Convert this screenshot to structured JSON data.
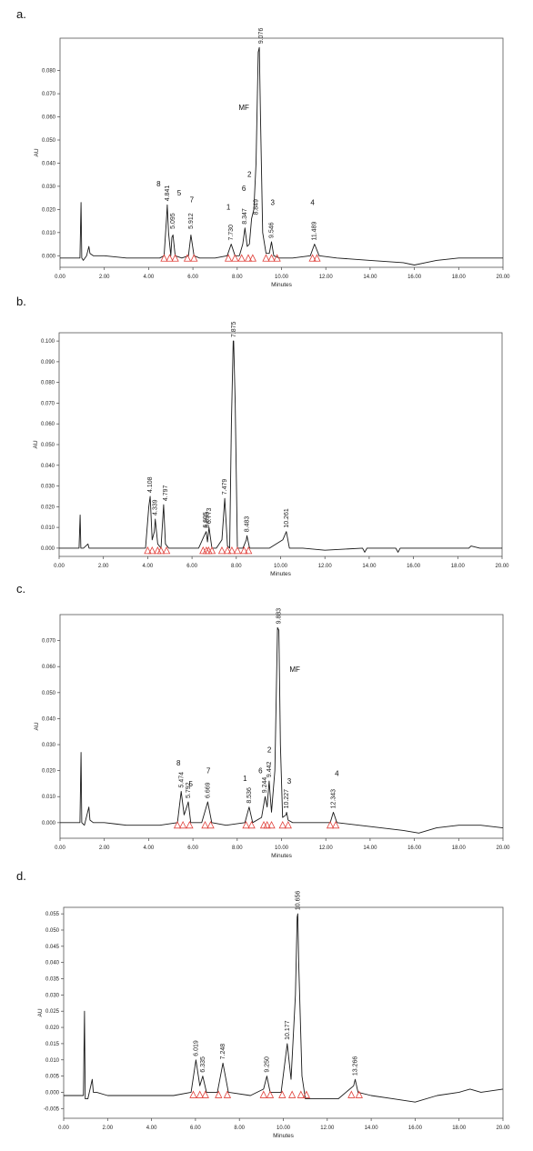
{
  "chart_data": [
    {
      "type": "line",
      "panel_label": "a.",
      "xlabel": "Minutes",
      "ylabel": "AU",
      "xlim": [
        0,
        20
      ],
      "ylim": [
        -0.005,
        0.094
      ],
      "xticks": [
        "0.00",
        "2.00",
        "4.00",
        "6.00",
        "8.00",
        "10.00",
        "12.00",
        "14.00",
        "16.00",
        "18.00",
        "20.00"
      ],
      "yticks": [
        {
          "v": 0.0,
          "t": "0.000"
        },
        {
          "v": 0.01,
          "t": "0.010"
        },
        {
          "v": 0.02,
          "t": "0.020"
        },
        {
          "v": 0.03,
          "t": "0.030"
        },
        {
          "v": 0.04,
          "t": "0.040"
        },
        {
          "v": 0.05,
          "t": "0.050"
        },
        {
          "v": 0.06,
          "t": "0.060"
        },
        {
          "v": 0.07,
          "t": "0.070"
        },
        {
          "v": 0.08,
          "t": "0.080"
        }
      ],
      "series": [
        {
          "x": [
            0,
            0.9,
            0.95,
            0.98,
            1.05,
            1.2,
            1.3,
            1.35,
            1.5,
            2.0,
            3.0,
            4.0,
            4.5,
            4.7,
            4.8,
            4.84,
            4.9,
            5.0,
            5.05,
            5.1,
            5.2,
            5.5,
            5.8,
            5.91,
            6.05,
            6.3,
            7.0,
            7.55,
            7.73,
            7.9,
            8.1,
            8.25,
            8.35,
            8.45,
            8.55,
            8.65,
            8.75,
            8.85,
            8.95,
            9.0,
            9.05,
            9.15,
            9.3,
            9.45,
            9.55,
            9.65,
            9.9,
            10.5,
            11.3,
            11.49,
            11.7,
            12.5,
            14.0,
            15.5,
            16.0,
            16.5,
            17.0,
            18.0,
            19.0,
            20.0
          ],
          "y": [
            -0.001,
            -0.001,
            0.023,
            -0.001,
            -0.002,
            0.0,
            0.004,
            0.001,
            0.0,
            0.0,
            -0.001,
            -0.001,
            -0.001,
            0.0,
            0.015,
            0.022,
            0.01,
            0.0,
            0.008,
            0.009,
            0.0,
            -0.001,
            0.0,
            0.009,
            0.0,
            -0.001,
            -0.001,
            0.0,
            0.005,
            0.0,
            0.0,
            0.005,
            0.012,
            0.004,
            0.005,
            0.016,
            0.02,
            0.04,
            0.088,
            0.09,
            0.06,
            0.01,
            0.001,
            0.001,
            0.006,
            0.0,
            -0.001,
            -0.001,
            0.0,
            0.005,
            0.0,
            -0.001,
            -0.002,
            -0.003,
            -0.004,
            -0.003,
            -0.002,
            -0.001,
            -0.001,
            -0.001
          ]
        }
      ],
      "peak_labels": [
        {
          "x": 4.841,
          "y": 0.022,
          "text": "4.841"
        },
        {
          "x": 5.095,
          "y": 0.01,
          "text": "5.095"
        },
        {
          "x": 5.912,
          "y": 0.01,
          "text": "5.912"
        },
        {
          "x": 7.73,
          "y": 0.005,
          "text": "7.730"
        },
        {
          "x": 8.347,
          "y": 0.012,
          "text": "8.347"
        },
        {
          "x": 8.849,
          "y": 0.016,
          "text": "8.849"
        },
        {
          "x": 9.076,
          "y": 0.09,
          "text": "9.076"
        },
        {
          "x": 9.546,
          "y": 0.006,
          "text": "9.546"
        },
        {
          "x": 11.489,
          "y": 0.005,
          "text": "11.489"
        }
      ],
      "annotations": [
        {
          "x": 4.45,
          "y": 0.03,
          "text": "8"
        },
        {
          "x": 5.38,
          "y": 0.026,
          "text": "5"
        },
        {
          "x": 5.95,
          "y": 0.023,
          "text": "7"
        },
        {
          "x": 7.6,
          "y": 0.02,
          "text": "1"
        },
        {
          "x": 8.3,
          "y": 0.028,
          "text": "6"
        },
        {
          "x": 8.55,
          "y": 0.034,
          "text": "2"
        },
        {
          "x": 9.6,
          "y": 0.022,
          "text": "3"
        },
        {
          "x": 11.4,
          "y": 0.022,
          "text": "4"
        },
        {
          "x": 8.3,
          "y": 0.063,
          "text": "MF"
        }
      ],
      "markers": [
        4.7,
        4.95,
        5.2,
        5.75,
        6.05,
        7.6,
        7.9,
        8.2,
        8.5,
        8.7,
        9.3,
        9.55,
        9.8,
        11.4,
        11.6
      ]
    },
    {
      "type": "line",
      "panel_label": "b.",
      "xlabel": "Minutes",
      "ylabel": "AU",
      "xlim": [
        0,
        20
      ],
      "ylim": [
        -0.004,
        0.104
      ],
      "xticks": [
        "0.00",
        "2.00",
        "4.00",
        "6.00",
        "8.00",
        "10.00",
        "12.00",
        "14.00",
        "16.00",
        "18.00",
        "20.00"
      ],
      "yticks": [
        {
          "v": 0.0,
          "t": "0.000"
        },
        {
          "v": 0.01,
          "t": "0.010"
        },
        {
          "v": 0.02,
          "t": "0.020"
        },
        {
          "v": 0.03,
          "t": "0.030"
        },
        {
          "v": 0.04,
          "t": "0.040"
        },
        {
          "v": 0.05,
          "t": "0.050"
        },
        {
          "v": 0.06,
          "t": "0.060"
        },
        {
          "v": 0.07,
          "t": "0.070"
        },
        {
          "v": 0.08,
          "t": "0.080"
        },
        {
          "v": 0.09,
          "t": "0.090"
        },
        {
          "v": 0.1,
          "t": "0.100"
        }
      ],
      "series": [
        {
          "x": [
            0,
            0.9,
            0.95,
            0.98,
            1.1,
            1.3,
            1.35,
            1.5,
            2.0,
            3.0,
            3.9,
            4.05,
            4.11,
            4.2,
            4.3,
            4.34,
            4.45,
            4.6,
            4.72,
            4.8,
            4.95,
            5.5,
            6.3,
            6.55,
            6.64,
            6.7,
            6.77,
            6.9,
            7.1,
            7.35,
            7.48,
            7.6,
            7.7,
            7.78,
            7.86,
            7.88,
            7.95,
            8.05,
            8.3,
            8.45,
            8.48,
            8.6,
            9.0,
            9.5,
            10.1,
            10.26,
            10.4,
            11.0,
            12.0,
            13.7,
            13.8,
            13.9,
            14.5,
            15.2,
            15.3,
            15.4,
            16.0,
            17.0,
            18.5,
            18.6,
            19.0,
            20.0
          ],
          "y": [
            0.0,
            0.0,
            0.016,
            0.0,
            0.0,
            0.002,
            0.0,
            0.0,
            0.0,
            0.0,
            0.0,
            0.02,
            0.025,
            0.004,
            0.008,
            0.014,
            0.002,
            0.0,
            0.021,
            0.002,
            0.0,
            0.0,
            0.0,
            0.006,
            0.008,
            0.003,
            0.01,
            0.0,
            0.0,
            0.004,
            0.024,
            0.001,
            0.0,
            0.06,
            0.1,
            0.1,
            0.07,
            0.0,
            0.0,
            0.004,
            0.006,
            0.0,
            0.0,
            0.0,
            0.004,
            0.008,
            0.0,
            0.0,
            -0.001,
            0.0,
            -0.002,
            0.0,
            0.0,
            0.0,
            -0.002,
            0.0,
            0.0,
            0.0,
            0.0,
            0.001,
            0.0,
            0.0
          ]
        }
      ],
      "peak_labels": [
        {
          "x": 4.108,
          "y": 0.025,
          "text": "4.108"
        },
        {
          "x": 4.339,
          "y": 0.014,
          "text": "4.339"
        },
        {
          "x": 4.797,
          "y": 0.021,
          "text": "4.797"
        },
        {
          "x": 6.605,
          "y": 0.008,
          "text": "6.605"
        },
        {
          "x": 6.693,
          "y": 0.008,
          "text": "6.693"
        },
        {
          "x": 6.773,
          "y": 0.01,
          "text": "6.773"
        },
        {
          "x": 7.479,
          "y": 0.024,
          "text": "7.479"
        },
        {
          "x": 7.875,
          "y": 0.1,
          "text": "7.875"
        },
        {
          "x": 8.483,
          "y": 0.006,
          "text": "8.483"
        },
        {
          "x": 10.261,
          "y": 0.008,
          "text": "10.261"
        }
      ],
      "annotations": [],
      "markers": [
        4.0,
        4.2,
        4.45,
        4.6,
        4.85,
        6.5,
        6.65,
        6.75,
        6.9,
        7.35,
        7.6,
        7.8,
        8.05,
        8.35,
        8.55
      ]
    },
    {
      "type": "line",
      "panel_label": "c.",
      "xlabel": "Minutes",
      "ylabel": "AU",
      "xlim": [
        0,
        20
      ],
      "ylim": [
        -0.006,
        0.08
      ],
      "xticks": [
        "0.00",
        "2.00",
        "4.00",
        "6.00",
        "8.00",
        "10.00",
        "12.00",
        "14.00",
        "16.00",
        "18.00",
        "20.00"
      ],
      "yticks": [
        {
          "v": 0.0,
          "t": "0.000"
        },
        {
          "v": 0.01,
          "t": "0.010"
        },
        {
          "v": 0.02,
          "t": "0.020"
        },
        {
          "v": 0.03,
          "t": "0.030"
        },
        {
          "v": 0.04,
          "t": "0.040"
        },
        {
          "v": 0.05,
          "t": "0.050"
        },
        {
          "v": 0.06,
          "t": "0.060"
        },
        {
          "v": 0.07,
          "t": "0.070"
        }
      ],
      "series": [
        {
          "x": [
            0,
            0.9,
            0.95,
            0.98,
            1.1,
            1.3,
            1.35,
            1.5,
            2.0,
            3.0,
            4.5,
            5.3,
            5.47,
            5.6,
            5.72,
            5.79,
            5.9,
            6.4,
            6.67,
            6.85,
            7.5,
            8.35,
            8.54,
            8.7,
            9.1,
            9.26,
            9.35,
            9.44,
            9.55,
            9.7,
            9.82,
            9.88,
            9.95,
            10.05,
            10.2,
            10.23,
            10.3,
            10.5,
            11.5,
            12.2,
            12.34,
            12.5,
            13.5,
            14.5,
            15.5,
            16.2,
            17.0,
            18.0,
            19.0,
            20.0
          ],
          "y": [
            0.0,
            0.0,
            0.027,
            0.0,
            -0.001,
            0.006,
            0.001,
            0.0,
            0.0,
            -0.001,
            -0.001,
            0.0,
            0.012,
            0.003,
            0.006,
            0.008,
            0.0,
            0.0,
            0.008,
            0.0,
            -0.001,
            0.0,
            0.006,
            0.0,
            0.002,
            0.01,
            0.006,
            0.016,
            0.004,
            0.02,
            0.075,
            0.074,
            0.03,
            0.002,
            0.003,
            0.004,
            0.001,
            0.0,
            0.0,
            0.0,
            0.004,
            0.0,
            -0.001,
            -0.002,
            -0.003,
            -0.004,
            -0.002,
            -0.001,
            -0.001,
            -0.002
          ]
        }
      ],
      "peak_labels": [
        {
          "x": 5.474,
          "y": 0.012,
          "text": "5.474"
        },
        {
          "x": 5.792,
          "y": 0.008,
          "text": "5.792"
        },
        {
          "x": 6.669,
          "y": 0.008,
          "text": "6.669"
        },
        {
          "x": 8.536,
          "y": 0.006,
          "text": "8.536"
        },
        {
          "x": 9.244,
          "y": 0.01,
          "text": "9.244"
        },
        {
          "x": 9.442,
          "y": 0.016,
          "text": "9.442"
        },
        {
          "x": 9.883,
          "y": 0.075,
          "text": "9.883"
        },
        {
          "x": 10.227,
          "y": 0.004,
          "text": "10.227"
        },
        {
          "x": 12.343,
          "y": 0.004,
          "text": "12.343"
        }
      ],
      "annotations": [
        {
          "x": 5.35,
          "y": 0.022,
          "text": "8"
        },
        {
          "x": 5.9,
          "y": 0.014,
          "text": "5"
        },
        {
          "x": 6.7,
          "y": 0.019,
          "text": "7"
        },
        {
          "x": 8.35,
          "y": 0.016,
          "text": "1"
        },
        {
          "x": 9.05,
          "y": 0.019,
          "text": "6"
        },
        {
          "x": 9.45,
          "y": 0.027,
          "text": "2"
        },
        {
          "x": 10.35,
          "y": 0.015,
          "text": "3"
        },
        {
          "x": 12.5,
          "y": 0.018,
          "text": "4"
        },
        {
          "x": 10.6,
          "y": 0.058,
          "text": "MF"
        }
      ],
      "markers": [
        5.3,
        5.55,
        5.85,
        6.55,
        6.8,
        8.4,
        8.65,
        9.2,
        9.35,
        9.55,
        10.05,
        10.3,
        12.2,
        12.45
      ]
    },
    {
      "type": "line",
      "panel_label": "d.",
      "xlabel": "Minutes",
      "ylabel": "AU",
      "xlim": [
        0,
        20
      ],
      "ylim": [
        -0.008,
        0.057
      ],
      "xticks": [
        "0.00",
        "2.00",
        "4.00",
        "6.00",
        "8.00",
        "10.00",
        "12.00",
        "14.00",
        "16.00",
        "18.00",
        "20.00"
      ],
      "yticks": [
        {
          "v": -0.005,
          "t": "-0.005"
        },
        {
          "v": 0.0,
          "t": "0.000"
        },
        {
          "v": 0.005,
          "t": "0.005"
        },
        {
          "v": 0.01,
          "t": "0.010"
        },
        {
          "v": 0.015,
          "t": "0.015"
        },
        {
          "v": 0.02,
          "t": "0.020"
        },
        {
          "v": 0.025,
          "t": "0.025"
        },
        {
          "v": 0.03,
          "t": "0.030"
        },
        {
          "v": 0.035,
          "t": "0.035"
        },
        {
          "v": 0.04,
          "t": "0.040"
        },
        {
          "v": 0.045,
          "t": "0.045"
        },
        {
          "v": 0.05,
          "t": "0.050"
        },
        {
          "v": 0.055,
          "t": "0.055"
        }
      ],
      "series": [
        {
          "x": [
            0,
            0.9,
            0.95,
            0.98,
            1.1,
            1.3,
            1.35,
            1.5,
            2.0,
            3.0,
            4.0,
            5.0,
            5.8,
            6.02,
            6.2,
            6.33,
            6.5,
            7.0,
            7.25,
            7.5,
            8.5,
            9.1,
            9.25,
            9.4,
            9.9,
            10.18,
            10.35,
            10.55,
            10.63,
            10.66,
            10.7,
            10.85,
            11.0,
            11.5,
            12.5,
            13.2,
            13.27,
            13.4,
            14.0,
            15.0,
            16.0,
            17.0,
            18.0,
            18.5,
            19.0,
            20.0
          ],
          "y": [
            -0.001,
            -0.001,
            0.025,
            -0.002,
            -0.002,
            0.004,
            0.0,
            0.0,
            -0.001,
            -0.001,
            -0.001,
            -0.001,
            0.0,
            0.01,
            0.002,
            0.005,
            0.0,
            0.0,
            0.009,
            0.0,
            -0.001,
            0.001,
            0.005,
            0.0,
            0.0,
            0.015,
            0.004,
            0.03,
            0.054,
            0.055,
            0.04,
            0.005,
            -0.002,
            -0.002,
            -0.002,
            0.002,
            0.004,
            0.0,
            -0.001,
            -0.002,
            -0.003,
            -0.001,
            0.0,
            0.001,
            0.0,
            0.001
          ]
        }
      ],
      "peak_labels": [
        {
          "x": 6.019,
          "y": 0.01,
          "text": "6.019"
        },
        {
          "x": 6.335,
          "y": 0.005,
          "text": "6.335"
        },
        {
          "x": 7.248,
          "y": 0.009,
          "text": "7.248"
        },
        {
          "x": 9.25,
          "y": 0.005,
          "text": "9.250"
        },
        {
          "x": 10.177,
          "y": 0.015,
          "text": "10.177"
        },
        {
          "x": 10.656,
          "y": 0.055,
          "text": "10.656"
        },
        {
          "x": 13.266,
          "y": 0.004,
          "text": "13.266"
        }
      ],
      "annotations": [],
      "markers": [
        5.9,
        6.2,
        6.45,
        7.05,
        7.45,
        9.1,
        9.4,
        9.95,
        10.4,
        10.8,
        11.05,
        13.1,
        13.45
      ]
    }
  ]
}
